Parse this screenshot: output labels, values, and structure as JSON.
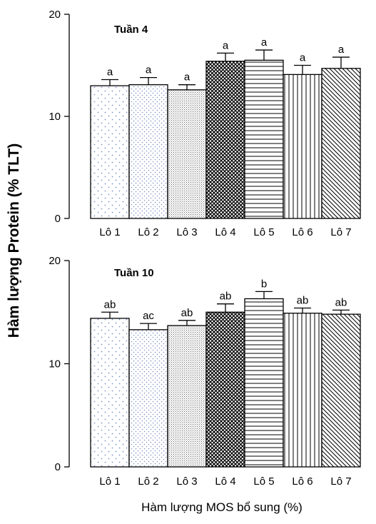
{
  "chart_data": {
    "type": "bar",
    "ylabel": "Hàm lượng Protein (% TLT)",
    "xlabel": "Hàm lượng MOS bổ sung (%)",
    "categories": [
      "Lô 1",
      "Lô 2",
      "Lô 3",
      "Lô 4",
      "Lô 5",
      "Lô 6",
      "Lô 7"
    ],
    "patterns": [
      "dots-sparse",
      "dots-dense",
      "dots-fine",
      "crosshatch",
      "hlines",
      "vlines",
      "diagonal"
    ],
    "colors": {
      "bar_stroke": "#000000",
      "dot_fill": "#7a93c4",
      "dot_fine": "#6b6b6b",
      "hatch": "#000000"
    },
    "panels": [
      {
        "title": "Tuần 4",
        "ylim": [
          0,
          20
        ],
        "yticks": [
          0,
          10,
          20
        ],
        "values": [
          13.0,
          13.1,
          12.6,
          15.4,
          15.5,
          14.1,
          14.7
        ],
        "errors": [
          0.6,
          0.7,
          0.5,
          0.8,
          1.0,
          0.9,
          1.1
        ],
        "sig": [
          "a",
          "a",
          "a",
          "a",
          "a",
          "a",
          "a"
        ]
      },
      {
        "title": "Tuần 10",
        "ylim": [
          0,
          20
        ],
        "yticks": [
          0,
          10,
          20
        ],
        "values": [
          14.4,
          13.3,
          13.7,
          15.0,
          16.3,
          14.9,
          14.8
        ],
        "errors": [
          0.6,
          0.6,
          0.5,
          0.8,
          0.7,
          0.5,
          0.4
        ],
        "sig": [
          "ab",
          "ac",
          "ab",
          "ab",
          "b",
          "ab",
          "ab"
        ]
      }
    ]
  }
}
